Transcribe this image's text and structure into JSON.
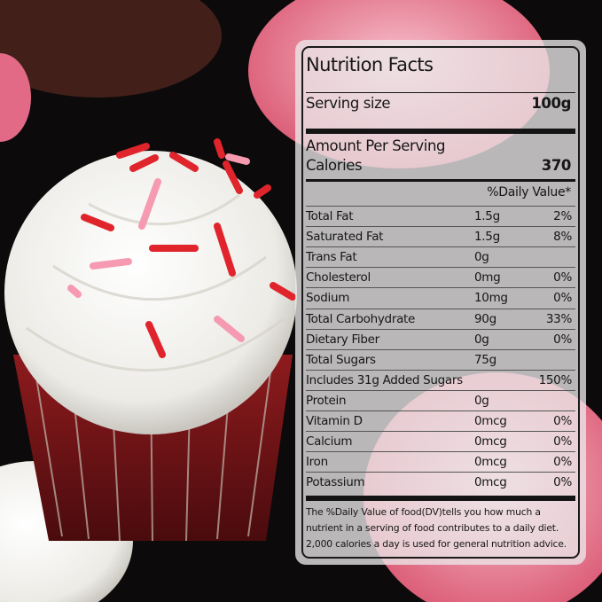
{
  "title": "Nutrition Facts",
  "serving_size_label": "Serving size",
  "serving_size_value": "100g",
  "amount_per_serving": "Amount Per Serving",
  "calories_label": "Calories",
  "calories_value": "370",
  "daily_value_header": "%Daily Value*",
  "nutrients": [
    {
      "label": "Total Fat",
      "amount": "1.5g",
      "dv": "2%"
    },
    {
      "label": "Saturated Fat",
      "amount": "1.5g",
      "dv": "8%"
    },
    {
      "label": "Trans Fat",
      "amount": "0g",
      "dv": ""
    },
    {
      "label": "Cholesterol",
      "amount": "0mg",
      "dv": "0%"
    },
    {
      "label": "Sodium",
      "amount": "10mg",
      "dv": "0%"
    },
    {
      "label": "Total Carbohydrate",
      "amount": "90g",
      "dv": "33%"
    },
    {
      "label": "Dietary Fiber",
      "amount": "0g",
      "dv": "0%"
    },
    {
      "label": "Total Sugars",
      "amount": "75g",
      "dv": ""
    },
    {
      "label": "Includes 31g Added Sugars",
      "amount": "",
      "dv": "150%"
    },
    {
      "label": "Protein",
      "amount": "0g",
      "dv": ""
    },
    {
      "label": "Vitamin D",
      "amount": "0mcg",
      "dv": "0%"
    },
    {
      "label": "Calcium",
      "amount": "0mcg",
      "dv": "0%"
    },
    {
      "label": "Iron",
      "amount": "0mcg",
      "dv": "0%"
    },
    {
      "label": "Potassium",
      "amount": "0mcg",
      "dv": "0%"
    }
  ],
  "footnote": [
    "The %Daily Value of food(DV)tells you how much a",
    "nutrient in a serving of food contributes to a daily diet.",
    "2,000 calories a day is used for general nutrition advice."
  ]
}
